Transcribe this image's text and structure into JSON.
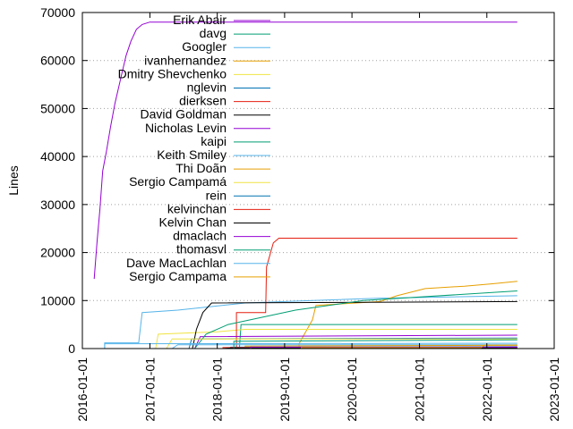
{
  "chart_data": {
    "type": "line",
    "title": "",
    "xlabel": "",
    "ylabel": "Lines",
    "xlim": [
      "2016-01-01",
      "2023-01-01"
    ],
    "ylim": [
      0,
      70000
    ],
    "x_ticks": [
      "2016-01-01",
      "2017-01-01",
      "2018-01-01",
      "2019-01-01",
      "2020-01-01",
      "2021-01-01",
      "2022-01-01",
      "2023-01-01"
    ],
    "y_ticks": [
      0,
      10000,
      20000,
      30000,
      40000,
      50000,
      60000,
      70000
    ],
    "grid": true,
    "legend_position": "top-right",
    "series": [
      {
        "name": "Erik Abair",
        "color": "#9400d3",
        "points": [
          [
            "2016-03-05",
            14500
          ],
          [
            "2016-03-20",
            22000
          ],
          [
            "2016-04-05",
            29000
          ],
          [
            "2016-04-20",
            37000
          ],
          [
            "2016-05-10",
            41000
          ],
          [
            "2016-06-01",
            46000
          ],
          [
            "2016-06-25",
            51000
          ],
          [
            "2016-07-25",
            56000
          ],
          [
            "2016-08-25",
            61000
          ],
          [
            "2016-09-20",
            64000
          ],
          [
            "2016-10-20",
            66500
          ],
          [
            "2016-11-20",
            67500
          ],
          [
            "2017-01-01",
            68000
          ],
          [
            "2022-06-15",
            68000
          ]
        ]
      },
      {
        "name": "davg",
        "color": "#009e73",
        "points": [
          [
            "2018-05-01",
            0
          ],
          [
            "2018-05-10",
            5000
          ],
          [
            "2022-06-15",
            5000
          ]
        ]
      },
      {
        "name": "Googler",
        "color": "#56b4e9",
        "points": [
          [
            "2016-05-01",
            0
          ],
          [
            "2016-05-01",
            1200
          ],
          [
            "2016-11-01",
            1200
          ],
          [
            "2016-11-20",
            7500
          ],
          [
            "2017-06-01",
            8000
          ],
          [
            "2018-06-01",
            9500
          ],
          [
            "2019-06-01",
            10000
          ],
          [
            "2020-06-01",
            10500
          ],
          [
            "2022-06-15",
            11000
          ]
        ]
      },
      {
        "name": "ivanhernandez",
        "color": "#e69f00",
        "points": [
          [
            "2019-03-20",
            0
          ],
          [
            "2019-03-20",
            1000
          ],
          [
            "2019-06-01",
            6000
          ],
          [
            "2019-06-20",
            9000
          ],
          [
            "2020-06-01",
            9800
          ],
          [
            "2020-09-01",
            11000
          ],
          [
            "2021-02-01",
            12500
          ],
          [
            "2021-09-01",
            13000
          ],
          [
            "2022-02-01",
            13500
          ],
          [
            "2022-06-15",
            14000
          ]
        ]
      },
      {
        "name": "Dmitry Shevchenko",
        "color": "#f0e442",
        "points": [
          [
            "2017-02-01",
            0
          ],
          [
            "2017-02-15",
            3000
          ],
          [
            "2018-01-01",
            3500
          ],
          [
            "2018-06-01",
            4000
          ],
          [
            "2022-06-15",
            4000
          ]
        ]
      },
      {
        "name": "nglevin",
        "color": "#0072b2",
        "points": [
          [
            "2017-08-01",
            0
          ],
          [
            "2017-08-15",
            2000
          ],
          [
            "2022-06-15",
            2200
          ]
        ]
      },
      {
        "name": "dierksen",
        "color": "#e51e10",
        "points": [
          [
            "2018-04-15",
            0
          ],
          [
            "2018-04-15",
            7500
          ],
          [
            "2018-09-20",
            7500
          ],
          [
            "2018-09-25",
            17000
          ],
          [
            "2018-11-01",
            22000
          ],
          [
            "2018-12-01",
            23000
          ],
          [
            "2022-06-15",
            23000
          ]
        ]
      },
      {
        "name": "David Goldman",
        "color": "#000000",
        "points": [
          [
            "2017-08-20",
            0
          ],
          [
            "2017-09-10",
            4000
          ],
          [
            "2017-10-15",
            7500
          ],
          [
            "2017-12-01",
            9500
          ],
          [
            "2022-06-15",
            9800
          ]
        ]
      },
      {
        "name": "Nicholas Levin",
        "color": "#9400d3",
        "points": [
          [
            "2017-09-01",
            0
          ],
          [
            "2017-10-01",
            2500
          ],
          [
            "2022-06-15",
            2800
          ]
        ]
      },
      {
        "name": "kaipi",
        "color": "#009e73",
        "points": [
          [
            "2017-09-01",
            0
          ],
          [
            "2017-11-01",
            3000
          ],
          [
            "2018-03-01",
            5000
          ],
          [
            "2019-03-01",
            8000
          ],
          [
            "2020-03-01",
            10000
          ],
          [
            "2022-06-15",
            12000
          ]
        ]
      },
      {
        "name": "Keith Smiley",
        "color": "#56b4e9",
        "points": [
          [
            "2017-05-01",
            0
          ],
          [
            "2017-06-01",
            800
          ],
          [
            "2022-06-15",
            800
          ]
        ]
      },
      {
        "name": "Thi Doãn",
        "color": "#e69f00",
        "points": [
          [
            "2018-06-01",
            0
          ],
          [
            "2018-06-01",
            500
          ],
          [
            "2022-06-15",
            700
          ]
        ]
      },
      {
        "name": "Sergio Campamá",
        "color": "#f0e442",
        "points": [
          [
            "2017-04-01",
            0
          ],
          [
            "2017-05-01",
            2000
          ],
          [
            "2022-06-15",
            2000
          ]
        ]
      },
      {
        "name": "rein",
        "color": "#0072b2",
        "points": [
          [
            "2018-03-01",
            0
          ],
          [
            "2018-03-15",
            300
          ],
          [
            "2022-06-15",
            400
          ]
        ]
      },
      {
        "name": "kelvinchan",
        "color": "#e51e10",
        "points": [
          [
            "2018-02-01",
            0
          ],
          [
            "2018-02-01",
            200
          ],
          [
            "2022-06-15",
            300
          ]
        ]
      },
      {
        "name": "Kelvin Chan",
        "color": "#000000",
        "points": [
          [
            "2018-02-01",
            0
          ],
          [
            "2018-03-01",
            100
          ],
          [
            "2022-06-15",
            150
          ]
        ]
      },
      {
        "name": "dmaclach",
        "color": "#9400d3",
        "points": [
          [
            "2018-07-01",
            0
          ],
          [
            "2018-07-01",
            300
          ],
          [
            "2022-06-15",
            300
          ]
        ]
      },
      {
        "name": "thomasvl",
        "color": "#009e73",
        "points": [
          [
            "2018-04-01",
            0
          ],
          [
            "2018-04-01",
            1500
          ],
          [
            "2022-06-15",
            1800
          ]
        ]
      },
      {
        "name": "Dave MacLachlan",
        "color": "#56b4e9",
        "points": [
          [
            "2016-05-01",
            0
          ],
          [
            "2016-05-01",
            1000
          ],
          [
            "2022-06-15",
            1100
          ]
        ]
      },
      {
        "name": "Sergio Campama",
        "color": "#e69f00",
        "points": [
          [
            "2019-04-01",
            0
          ],
          [
            "2019-04-01",
            200
          ],
          [
            "2021-12-01",
            200
          ],
          [
            "2021-12-15",
            700
          ],
          [
            "2022-06-15",
            700
          ]
        ]
      }
    ]
  }
}
